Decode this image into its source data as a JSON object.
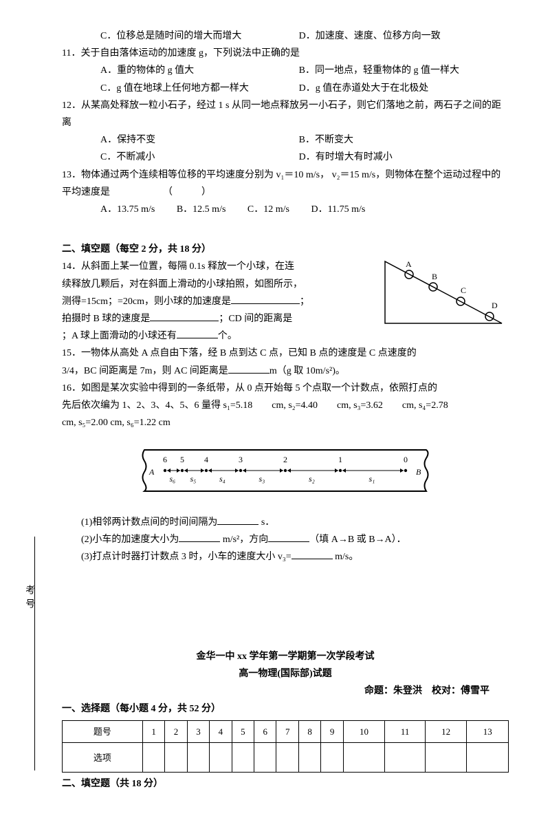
{
  "q10": {
    "optC": "C．位移总是随时间的增大而增大",
    "optD": "D．加速度、速度、位移方向一致"
  },
  "q11": {
    "stem": "11．关于自由落体运动的加速度 g，下列说法中正确的是",
    "optA": "A．重的物体的 g 值大",
    "optB": "B．同一地点，轻重物体的 g 值一样大",
    "optC": "C．g 值在地球上任何地方都一样大",
    "optD": "D．g 值在赤道处大于在北极处"
  },
  "q12": {
    "stem": "12．从某高处释放一粒小石子，经过 1  s 从同一地点释放另一小石子，则它们落地之前，两石子之间的距离",
    "optA": "A．保持不变",
    "optB": "B．不断变大",
    "optC": "C．不断减小",
    "optD": "D．有时增大有时减小"
  },
  "q13": {
    "stem": "13．物体通过两个连续相等位移的平均速度分别为 v₁＝10  m/s， v₂＝15  m/s，则物体在整个运动过程中的平均速度是　　　　　　（　　　）",
    "optA": "A．13.75 m/s",
    "optB": "B．12.5 m/s",
    "optC": "C．12 m/s",
    "optD": "D．11.75 m/s"
  },
  "section2": "二、填空题（每空 2 分，共 18 分）",
  "q14": {
    "line1": "14．从斜面上某一位置，每隔 0.1s 释放一个小球，在连",
    "line2": "续释放几颗后，对在斜面上滑动的小球拍照，如图所示，",
    "line3a": "测得=15cm；=20cm，则小球的加速度是",
    "line3b": "；",
    "line4a": "拍摄时 B 球的速度是",
    "line4b": "；CD 间的距离是",
    "line5a": "；A 球上面滑动的小球还有",
    "line5b": "个。"
  },
  "q15": {
    "line1": "15．一物体从高处 A 点自由下落，经 B 点到达 C 点，已知 B 点的速度是 C 点速度的",
    "line2a": "3/4，BC 间距离是 7m，则 AC 间距离是",
    "line2b": "m（g 取 10m/s²)。"
  },
  "q16": {
    "line1": "16．如图是某次实验中得到的一条纸带，从 0 点开始每 5 个点取一个计数点，依照打点的",
    "line2": "先后依次编为 1、2、3、4、5、6 量得 s₁=5.18　　cm, s₂=4.40　　cm, s₃=3.62　　cm, s₄=2.78",
    "line3": "cm, s₅=2.00 cm, s₆=1.22 cm",
    "sub1a": "(1)相邻两计数点间的时间间隔为",
    "sub1b": " s．",
    "sub2a": "(2)小车的加速度大小为",
    "sub2b": " m/s²，方向",
    "sub2c": "（填 A→B 或 B→A）．",
    "sub3a": "(3)打点计时器打计数点 3 时，小车的速度大小 v₃=",
    "sub3b": " m/s。"
  },
  "footer": {
    "title1": "金华一中 xx 学年第一学期第一次学段考试",
    "title2": "高一物理(国际部)试题",
    "author": "命题：朱登洪　校对：傅雪平",
    "sec1": "一、选择题（每小题 4 分，共 52 分）",
    "rowLabel1": "题号",
    "rowLabel2": "选项",
    "cells": [
      "1",
      "2",
      "3",
      "4",
      "5",
      "6",
      "7",
      "8",
      "9",
      "10",
      "11",
      "12",
      "13"
    ],
    "sec2": "二、填空题（共 18 分）"
  },
  "sideLabel": "考号",
  "triangle": {
    "labels": [
      "A",
      "B",
      "C",
      "D"
    ]
  },
  "tape": {
    "nums": [
      "6",
      "5",
      "4",
      "3",
      "2",
      "1",
      "0"
    ],
    "segs": [
      "s₆",
      "s₅",
      "s₄",
      "s₃",
      "s₂",
      "s₁"
    ],
    "leftLabel": "A",
    "rightLabel": "B"
  }
}
